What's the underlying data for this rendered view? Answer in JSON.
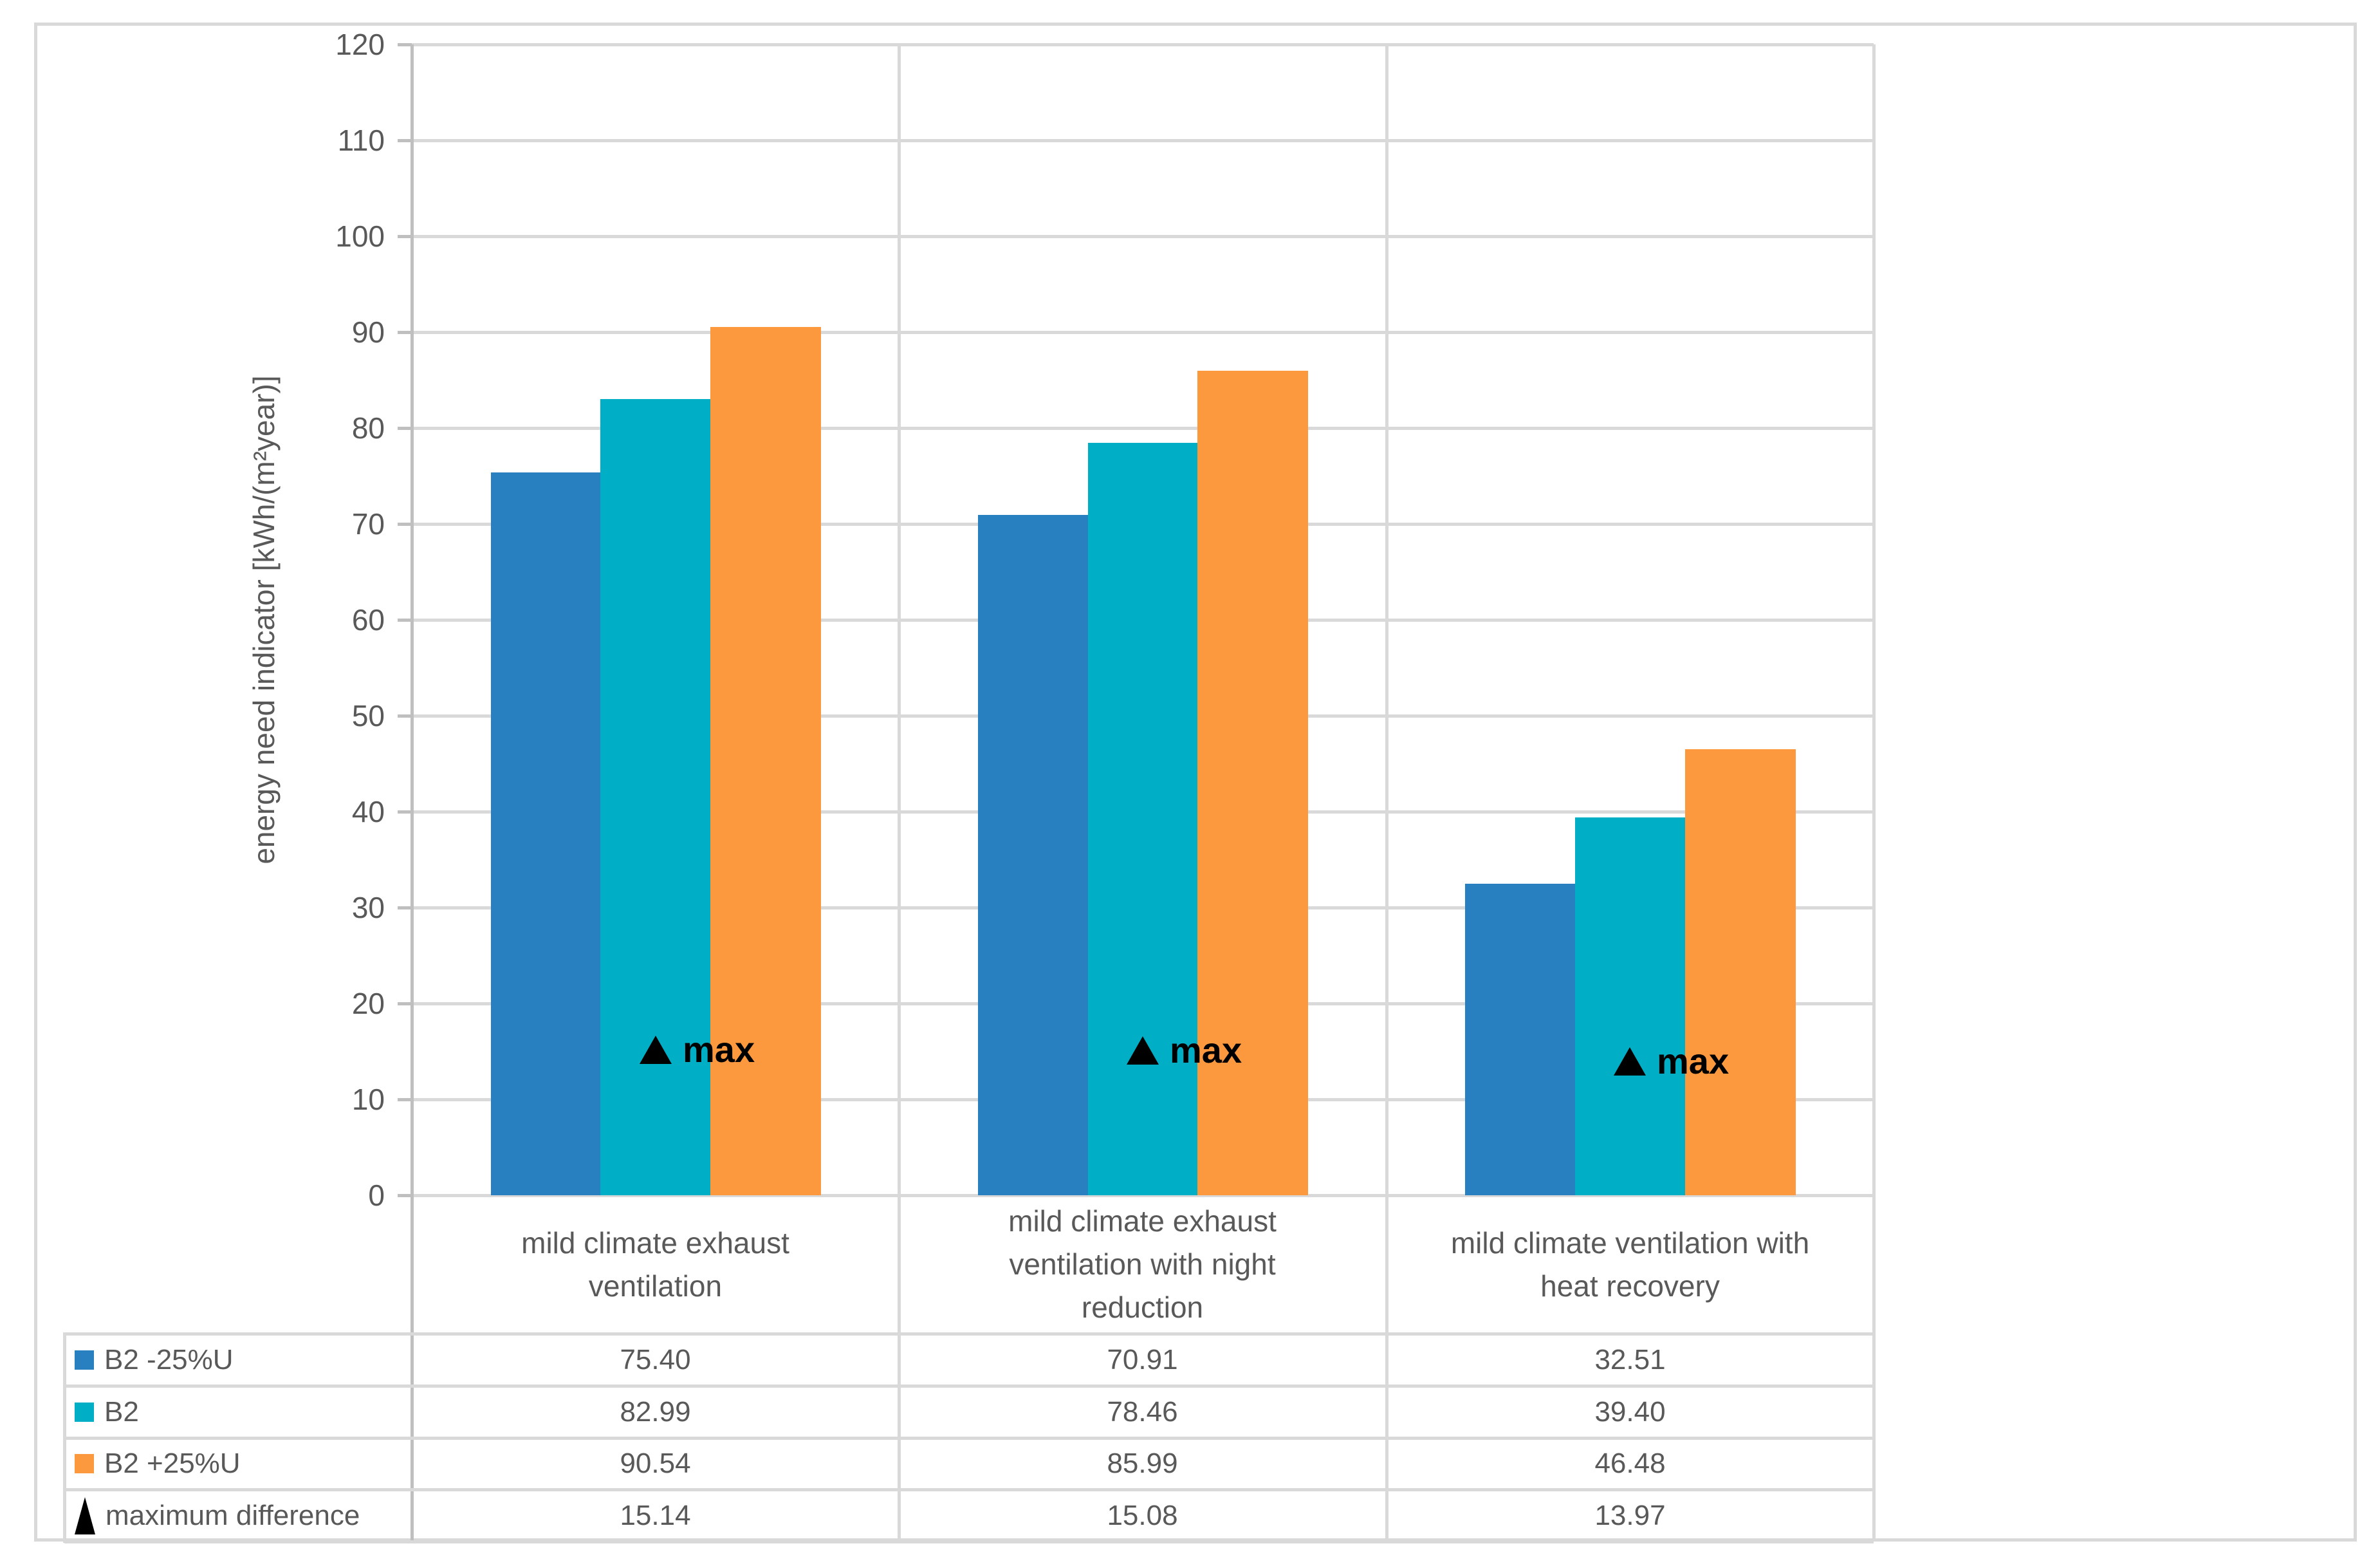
{
  "chart_data": {
    "type": "bar",
    "title": "",
    "ylabel": "energy need indicator [kWh/(m²year)]",
    "ylim": [
      0,
      120
    ],
    "ytick_step": 10,
    "grid": true,
    "legend_position": "table-below-left",
    "categories": [
      "mild climate exhaust\nventilation",
      "mild climate exhaust\nventilation with night\nreduction",
      "mild climate ventilation with\nheat recovery"
    ],
    "series": [
      {
        "name": "B2 -25%U",
        "color": "#2980C0",
        "values": [
          75.4,
          70.91,
          32.51
        ]
      },
      {
        "name": "B2",
        "color": "#00AEC6",
        "values": [
          82.99,
          78.46,
          39.4
        ]
      },
      {
        "name": "B2 +25%U",
        "color": "#FC993F",
        "values": [
          90.54,
          85.99,
          46.48
        ]
      }
    ],
    "markers": {
      "name": "maximum difference",
      "point_label": "max",
      "shape": "triangle-up",
      "color": "#000000",
      "values": [
        15.14,
        15.08,
        13.97
      ]
    }
  },
  "colors": {
    "gridline": "#D9D9D9",
    "axis_line": "#BFBFBF",
    "text": "#595959",
    "figure_border": "#D9D9D9",
    "background": "#FFFFFF",
    "annotation": "#000000"
  }
}
